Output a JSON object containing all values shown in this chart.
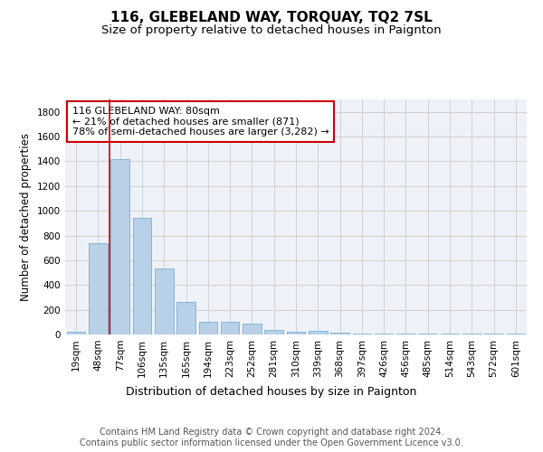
{
  "title1": "116, GLEBELAND WAY, TORQUAY, TQ2 7SL",
  "title2": "Size of property relative to detached houses in Paignton",
  "xlabel": "Distribution of detached houses by size in Paignton",
  "ylabel": "Number of detached properties",
  "categories": [
    "19sqm",
    "48sqm",
    "77sqm",
    "106sqm",
    "135sqm",
    "165sqm",
    "194sqm",
    "223sqm",
    "252sqm",
    "281sqm",
    "310sqm",
    "339sqm",
    "368sqm",
    "397sqm",
    "426sqm",
    "456sqm",
    "485sqm",
    "514sqm",
    "543sqm",
    "572sqm",
    "601sqm"
  ],
  "values": [
    22,
    740,
    1420,
    940,
    530,
    265,
    105,
    100,
    90,
    40,
    25,
    30,
    15,
    10,
    10,
    5,
    5,
    5,
    5,
    5,
    10
  ],
  "bar_color": "#b8d0e8",
  "bar_edge_color": "#7aaed0",
  "vline_x": 1.5,
  "vline_color": "#cc0000",
  "annotation_text": "116 GLEBELAND WAY: 80sqm\n← 21% of detached houses are smaller (871)\n78% of semi-detached houses are larger (3,282) →",
  "annotation_box_color": "#cc0000",
  "ylim": [
    0,
    1900
  ],
  "yticks": [
    0,
    200,
    400,
    600,
    800,
    1000,
    1200,
    1400,
    1600,
    1800
  ],
  "grid_color": "#d0d0d0",
  "background_color": "#eef2f8",
  "footer_text": "Contains HM Land Registry data © Crown copyright and database right 2024.\nContains public sector information licensed under the Open Government Licence v3.0.",
  "title1_fontsize": 11,
  "title2_fontsize": 9.5,
  "xlabel_fontsize": 9,
  "ylabel_fontsize": 8.5,
  "tick_fontsize": 7.5,
  "annotation_fontsize": 8,
  "footer_fontsize": 7
}
